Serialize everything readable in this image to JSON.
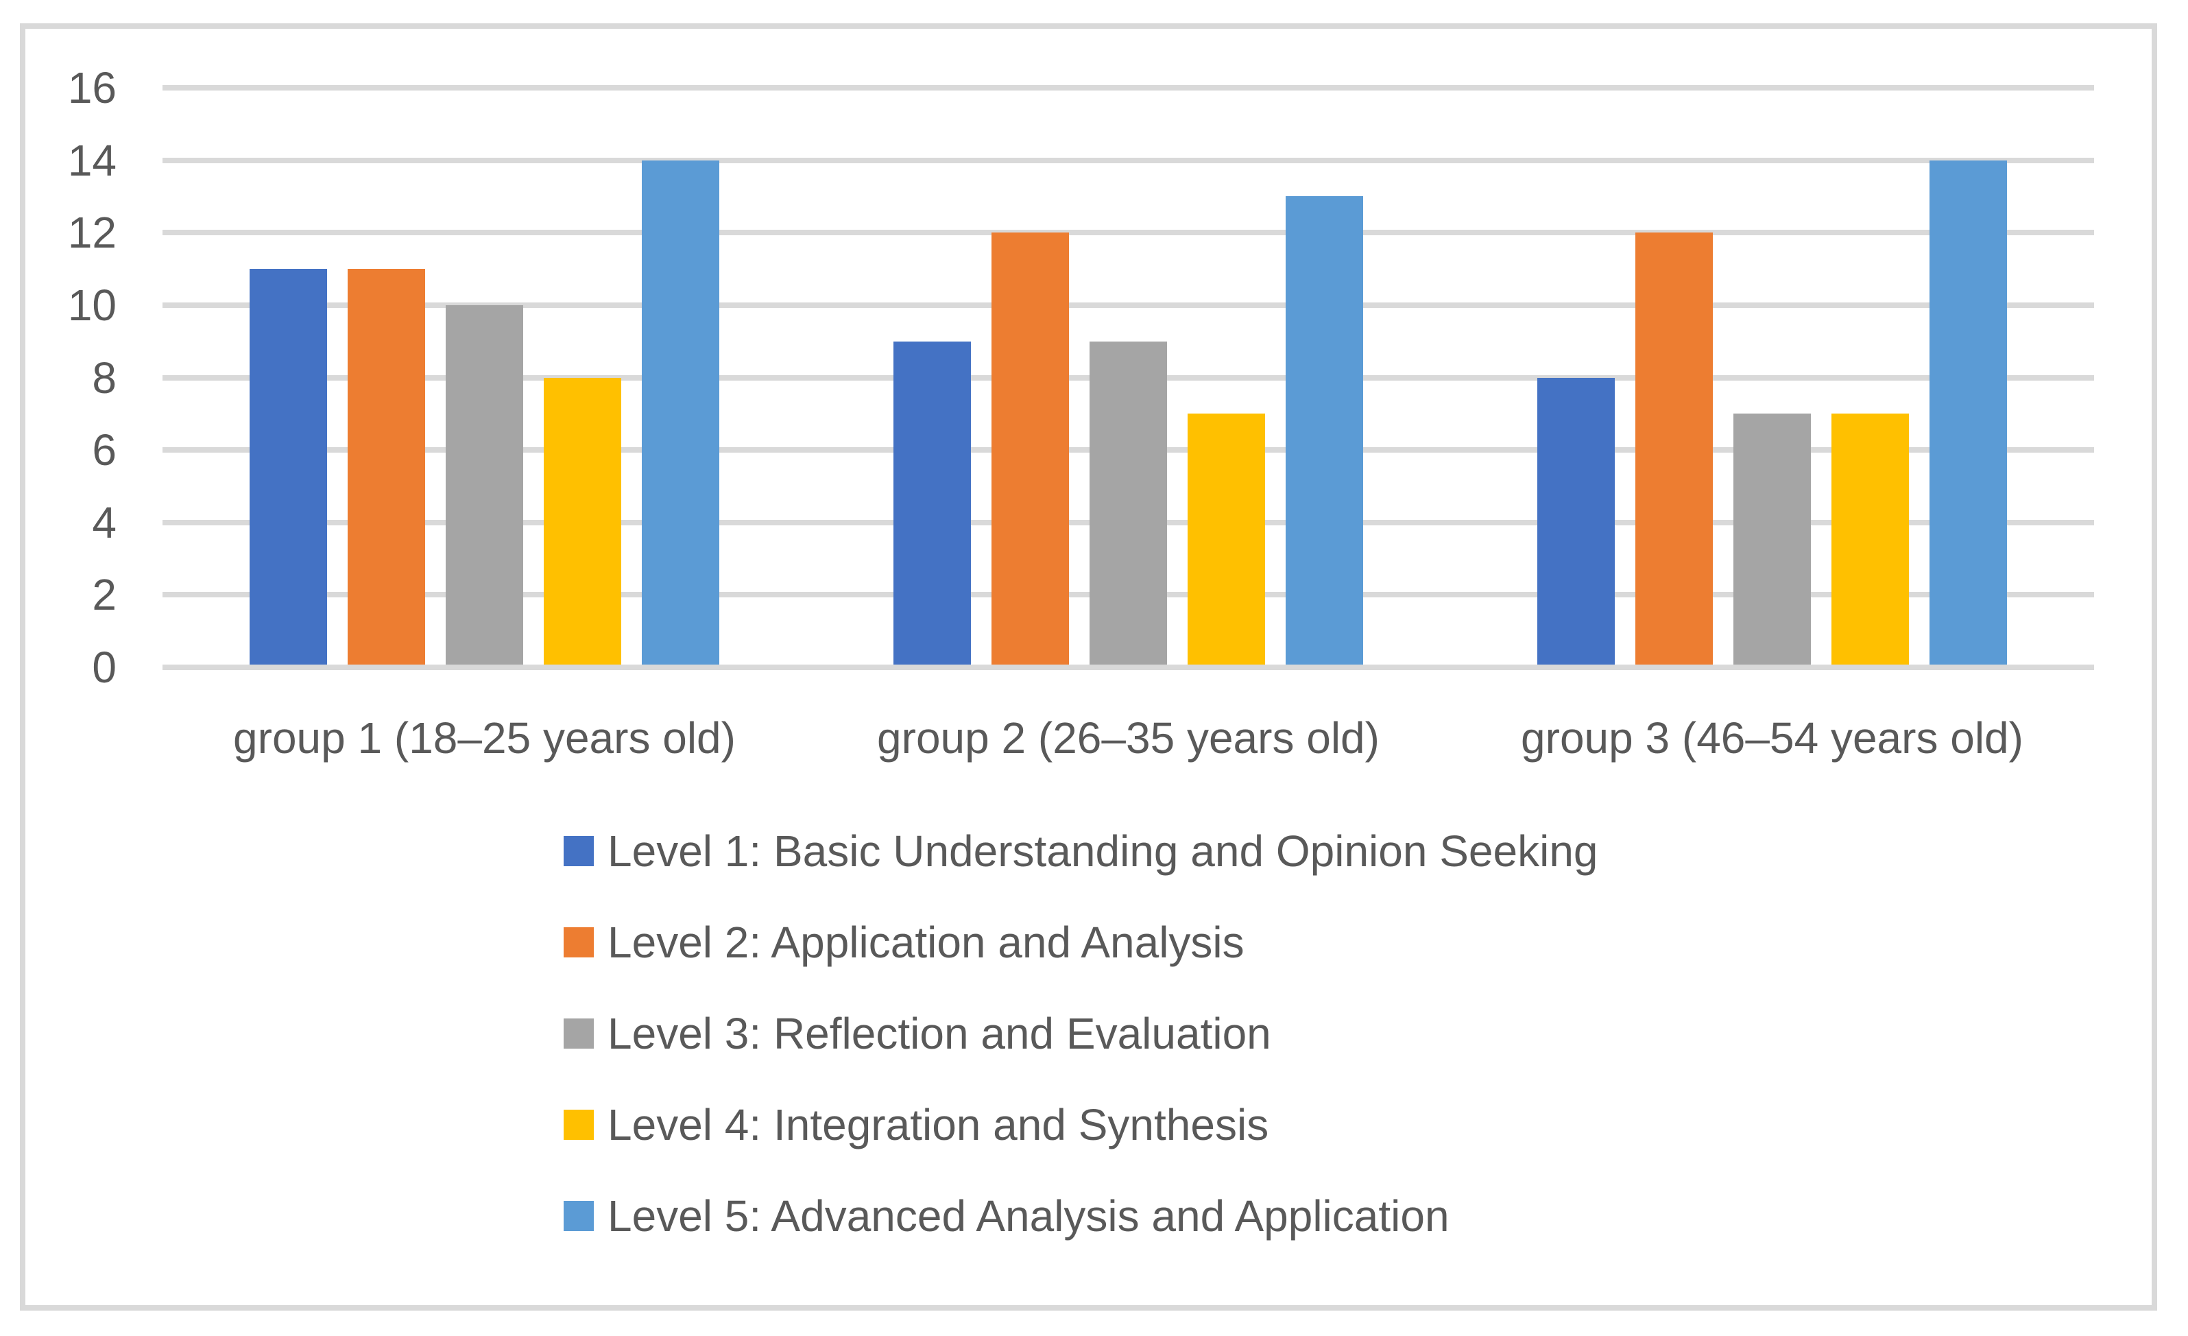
{
  "chart_data": {
    "type": "bar",
    "title": "",
    "xlabel": "",
    "ylabel": "",
    "categories": [
      "group 1 (18–25 years old)",
      "group 2 (26–35 years old)",
      "group 3 (46–54 years old)"
    ],
    "series": [
      {
        "name": "Level 1: Basic Understanding and Opinion Seeking",
        "color": "#4472C4",
        "values": [
          11,
          9,
          8
        ]
      },
      {
        "name": "Level 2: Application and Analysis",
        "color": "#ED7D31",
        "values": [
          11,
          12,
          12
        ]
      },
      {
        "name": "Level 3: Reflection and Evaluation",
        "color": "#A5A5A5",
        "values": [
          10,
          9,
          7
        ]
      },
      {
        "name": "Level 4: Integration and Synthesis",
        "color": "#FFC000",
        "values": [
          8,
          7,
          7
        ]
      },
      {
        "name": "Level 5: Advanced Analysis and Application",
        "color": "#5B9BD5",
        "values": [
          14,
          13,
          14
        ]
      }
    ],
    "ylim": [
      0,
      16
    ],
    "yticks": [
      0,
      2,
      4,
      6,
      8,
      10,
      12,
      14,
      16
    ],
    "grid": true,
    "legend_position": "bottom-left-column"
  },
  "style_colors": {
    "gridline": "#D9D9D9",
    "axis_line": "#D9D9D9",
    "frame_border": "#D9D9D9",
    "text": "#595959",
    "background": "#FFFFFF"
  }
}
